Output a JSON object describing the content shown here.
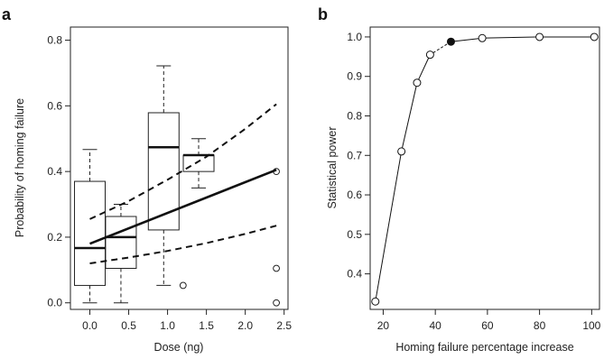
{
  "chart_data": [
    {
      "panel": "a",
      "type": "box",
      "xlabel": "Dose (ng)",
      "ylabel": "Probability of homing failure",
      "xlim": [
        -0.25,
        2.55
      ],
      "ylim": [
        -0.02,
        0.84
      ],
      "xticks": [
        "0.0",
        "0.5",
        "1.0",
        "1.5",
        "2.0",
        "2.5"
      ],
      "yticks": [
        "0.0",
        "0.2",
        "0.4",
        "0.6",
        "0.8"
      ],
      "boxes": [
        {
          "x": 0.0,
          "whisker_low": 0.0,
          "q1": 0.053,
          "median": 0.167,
          "q3": 0.37,
          "whisker_high": 0.467,
          "outliers": []
        },
        {
          "x": 0.4,
          "whisker_low": 0.0,
          "q1": 0.105,
          "median": 0.2,
          "q3": 0.263,
          "whisker_high": 0.3,
          "outliers": []
        },
        {
          "x": 0.95,
          "whisker_low": 0.053,
          "q1": 0.222,
          "median": 0.474,
          "q3": 0.579,
          "whisker_high": 0.722,
          "outliers": [
            0.053
          ]
        },
        {
          "x": 1.4,
          "whisker_low": 0.35,
          "q1": 0.4,
          "median": 0.45,
          "q3": 0.45,
          "whisker_high": 0.5,
          "outliers": []
        },
        {
          "x": 2.4,
          "whisker_low": 0.4,
          "q1": 0.4,
          "median": 0.4,
          "q3": 0.4,
          "whisker_high": 0.4,
          "outliers": [
            0.4,
            0.105,
            0.0
          ]
        }
      ],
      "fit_line": {
        "x": [
          0.0,
          2.4
        ],
        "y": [
          0.18,
          0.405
        ]
      },
      "ci_upper": {
        "x": [
          0.0,
          0.5,
          1.0,
          1.5,
          2.0,
          2.4
        ],
        "y": [
          0.255,
          0.31,
          0.375,
          0.445,
          0.53,
          0.605
        ]
      },
      "ci_lower": {
        "x": [
          0.0,
          0.5,
          1.0,
          1.5,
          2.0,
          2.4
        ],
        "y": [
          0.12,
          0.138,
          0.158,
          0.182,
          0.21,
          0.235
        ]
      }
    },
    {
      "panel": "b",
      "type": "line",
      "xlabel": "Homing failure percentage increase",
      "ylabel": "Statistical power",
      "xlim": [
        15,
        103
      ],
      "ylim": [
        0.31,
        1.025
      ],
      "xticks": [
        20,
        40,
        60,
        80,
        100
      ],
      "yticks": [
        "0.4",
        "0.5",
        "0.6",
        "0.7",
        "0.8",
        "0.9",
        "1.0"
      ],
      "points": [
        {
          "x": 17,
          "y": 0.33,
          "filled": false
        },
        {
          "x": 27,
          "y": 0.71,
          "filled": false
        },
        {
          "x": 33,
          "y": 0.884,
          "filled": false
        },
        {
          "x": 38,
          "y": 0.955,
          "filled": false
        },
        {
          "x": 46,
          "y": 0.988,
          "filled": true
        },
        {
          "x": 58,
          "y": 0.997,
          "filled": false
        },
        {
          "x": 80,
          "y": 1.0,
          "filled": false
        },
        {
          "x": 101,
          "y": 1.0,
          "filled": false
        }
      ],
      "dashed_segment": [
        3,
        4
      ]
    }
  ]
}
